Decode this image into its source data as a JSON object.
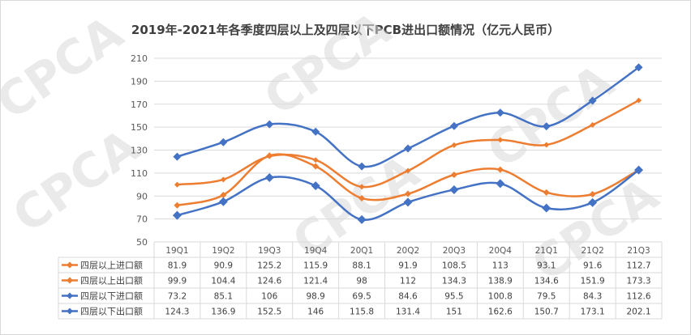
{
  "chart_data": {
    "type": "line",
    "title": "2019年-2021年各季度四层以上及四层以下PCB进出口额情况（亿元人民币）",
    "categories": [
      "19Q1",
      "19Q2",
      "19Q3",
      "19Q4",
      "20Q1",
      "20Q2",
      "20Q3",
      "20Q4",
      "21Q1",
      "21Q2",
      "21Q3"
    ],
    "yticks": [
      50,
      70,
      90,
      110,
      130,
      150,
      170,
      190,
      210
    ],
    "ylim": [
      50,
      210
    ],
    "grid": true,
    "legend": "data-table",
    "series": [
      {
        "name": "四层以上进口额",
        "color": "#ed7d31",
        "marker_size": 4,
        "values": [
          81.9,
          90.9,
          125.2,
          115.9,
          88.1,
          91.9,
          108.5,
          113,
          93.1,
          91.6,
          112.7
        ]
      },
      {
        "name": "四层以上出口额",
        "color": "#ed7d31",
        "marker_size": 3.5,
        "values": [
          99.9,
          104.4,
          124.6,
          121.4,
          98,
          112,
          134.3,
          138.9,
          134.6,
          151.9,
          173.3
        ]
      },
      {
        "name": "四层以下进口额",
        "color": "#4472c4",
        "marker_size": 5.5,
        "values": [
          73.2,
          85.1,
          106,
          98.9,
          69.5,
          84.6,
          95.5,
          100.8,
          79.5,
          84.3,
          112.6
        ]
      },
      {
        "name": "四层以下出口额",
        "color": "#4472c4",
        "marker_size": 5,
        "values": [
          124.3,
          136.9,
          152.5,
          146,
          115.8,
          131.4,
          151,
          162.6,
          150.7,
          173.1,
          202.1
        ]
      }
    ]
  },
  "watermark": {
    "text": "CPCA",
    "color": "#d9d9d9"
  }
}
